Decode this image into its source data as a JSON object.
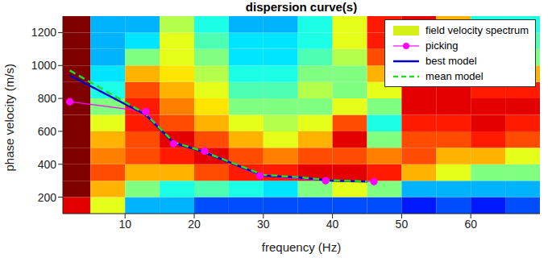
{
  "chart_data": {
    "type": "line",
    "title": "dispersion curve(s)",
    "x_label": "frequency (Hz)",
    "y_label": "phase velocity (m/s)",
    "xlim": [
      1,
      70
    ],
    "ylim": [
      100,
      1300
    ],
    "xticks": [
      10,
      20,
      30,
      40,
      50,
      60
    ],
    "yticks": [
      200,
      400,
      600,
      800,
      1000,
      1200
    ],
    "grid": false,
    "legend": "upper right",
    "spectrum": {
      "name": "field velocity spectrum",
      "color": "#d4f018",
      "clim": [
        0,
        1
      ],
      "x_edges": [
        1,
        5,
        10,
        15,
        20,
        25,
        30,
        35,
        40,
        45,
        50,
        55,
        60,
        65,
        70
      ],
      "y_edges": [
        100,
        200,
        300,
        400,
        500,
        600,
        700,
        800,
        900,
        1000,
        1100,
        1200,
        1300
      ],
      "values": [
        [
          0.9,
          0.6,
          0.3,
          0.3,
          0.2,
          0.2,
          0.2,
          0.2,
          0.2,
          0.2,
          0.15,
          0.2,
          0.15,
          0.2
        ],
        [
          1,
          0.7,
          0.5,
          0.4,
          0.45,
          0.4,
          0.35,
          0.5,
          0.6,
          0.5,
          0.3,
          0.3,
          0.3,
          0.3
        ],
        [
          1,
          0.8,
          0.7,
          0.7,
          0.8,
          0.85,
          0.85,
          0.9,
          0.9,
          0.85,
          0.7,
          0.6,
          0.5,
          0.5
        ],
        [
          1,
          0.75,
          0.8,
          0.85,
          0.9,
          0.8,
          0.75,
          0.8,
          0.8,
          0.75,
          0.8,
          0.7,
          0.7,
          0.6
        ],
        [
          1,
          0.7,
          0.8,
          0.9,
          0.8,
          0.7,
          0.6,
          0.7,
          0.9,
          0.5,
          0.8,
          0.8,
          0.85,
          0.8
        ],
        [
          1,
          0.6,
          0.85,
          0.8,
          0.7,
          0.6,
          0.55,
          0.6,
          0.8,
          0.4,
          0.85,
          0.85,
          0.9,
          0.85
        ],
        [
          1,
          0.5,
          0.85,
          0.75,
          0.65,
          0.5,
          0.5,
          0.5,
          0.6,
          0.5,
          0.9,
          0.9,
          0.9,
          0.9
        ],
        [
          1,
          0.4,
          0.8,
          0.7,
          0.6,
          0.45,
          0.45,
          0.55,
          0.5,
          0.6,
          0.9,
          0.9,
          0.85,
          0.85
        ],
        [
          1,
          0.35,
          0.7,
          0.65,
          0.55,
          0.4,
          0.4,
          0.5,
          0.5,
          0.7,
          0.9,
          0.85,
          0.6,
          0.7
        ],
        [
          1,
          0.3,
          0.5,
          0.6,
          0.5,
          0.35,
          0.35,
          0.45,
          0.55,
          0.8,
          0.9,
          0.8,
          0.5,
          0.5
        ],
        [
          1,
          0.3,
          0.35,
          0.6,
          0.45,
          0.35,
          0.35,
          0.4,
          0.6,
          0.85,
          0.9,
          0.7,
          0.4,
          0.45
        ],
        [
          1,
          0.3,
          0.3,
          0.55,
          0.4,
          0.3,
          0.3,
          0.4,
          0.6,
          0.85,
          0.9,
          0.7,
          0.4,
          0.4
        ]
      ]
    },
    "series": [
      {
        "name": "picking",
        "color": "#ff00ff",
        "marker": "circle",
        "line_style": "solid",
        "x": [
          2,
          13,
          17,
          21.5,
          29.5,
          39,
          46
        ],
        "values": [
          780,
          720,
          525,
          480,
          330,
          300,
          295
        ]
      },
      {
        "name": "best model",
        "color": "#0000c8",
        "marker": "none",
        "line_style": "solid",
        "x": [
          2,
          13,
          17,
          21,
          30,
          35,
          40,
          45
        ],
        "values": [
          940,
          700,
          530,
          480,
          330,
          320,
          300,
          295
        ]
      },
      {
        "name": "mean model",
        "color": "#22dd22",
        "marker": "none",
        "line_style": "dashed",
        "x": [
          2,
          13,
          17,
          21,
          30,
          35,
          40,
          45
        ],
        "values": [
          970,
          705,
          535,
          482,
          335,
          322,
          302,
          296
        ]
      }
    ]
  }
}
